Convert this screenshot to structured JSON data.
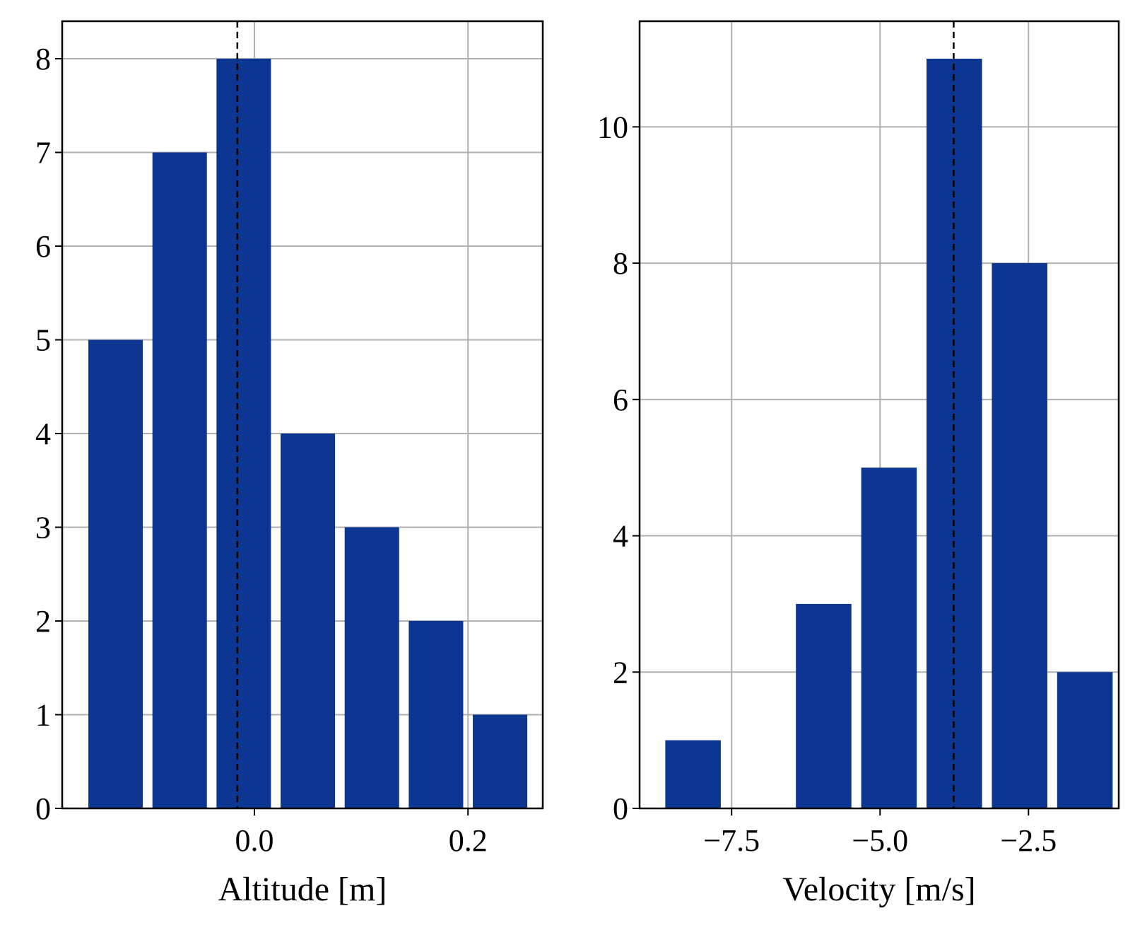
{
  "chart_data": [
    {
      "type": "bar",
      "title": "",
      "xlabel": "Altitude [m]",
      "ylabel": "",
      "grid": true,
      "bar_color": "#0d3592",
      "bars": [
        {
          "x_start": -0.16,
          "x_end": -0.1,
          "value": 5
        },
        {
          "x_start": -0.1,
          "x_end": -0.04,
          "value": 7
        },
        {
          "x_start": -0.04,
          "x_end": 0.02,
          "value": 8
        },
        {
          "x_start": 0.02,
          "x_end": 0.08,
          "value": 4
        },
        {
          "x_start": 0.08,
          "x_end": 0.14,
          "value": 3
        },
        {
          "x_start": 0.14,
          "x_end": 0.2,
          "value": 2
        },
        {
          "x_start": 0.2,
          "x_end": 0.26,
          "value": 1
        }
      ],
      "mean_line": -0.016,
      "xlim": [
        -0.18,
        0.27
      ],
      "ylim": [
        0,
        8.4
      ],
      "xticks": [
        0.0,
        0.2
      ],
      "xtick_labels": [
        "0.0",
        "0.2"
      ],
      "yticks": [
        0,
        1,
        2,
        3,
        4,
        5,
        6,
        7,
        8
      ],
      "ytick_labels": [
        "0",
        "1",
        "2",
        "3",
        "4",
        "5",
        "6",
        "7",
        "8"
      ]
    },
    {
      "type": "bar",
      "title": "",
      "xlabel": "Velocity [m/s]",
      "ylabel": "",
      "grid": true,
      "bar_color": "#0d3592",
      "bars": [
        {
          "x_start": -8.7,
          "x_end": -7.6,
          "value": 1
        },
        {
          "x_start": -7.6,
          "x_end": -6.5,
          "value": 0
        },
        {
          "x_start": -6.5,
          "x_end": -5.4,
          "value": 3
        },
        {
          "x_start": -5.4,
          "x_end": -4.3,
          "value": 5
        },
        {
          "x_start": -4.3,
          "x_end": -3.2,
          "value": 11
        },
        {
          "x_start": -3.2,
          "x_end": -2.1,
          "value": 8
        },
        {
          "x_start": -2.1,
          "x_end": -1.0,
          "value": 2
        }
      ],
      "mean_line": -3.76,
      "xlim": [
        -9.05,
        -0.98
      ],
      "ylim": [
        0,
        11.55
      ],
      "xticks": [
        -7.5,
        -5.0,
        -2.5
      ],
      "xtick_labels": [
        "−7.5",
        "−5.0",
        "−2.5"
      ],
      "yticks": [
        0,
        2,
        4,
        6,
        8,
        10
      ],
      "ytick_labels": [
        "0",
        "2",
        "4",
        "6",
        "8",
        "10"
      ]
    }
  ]
}
